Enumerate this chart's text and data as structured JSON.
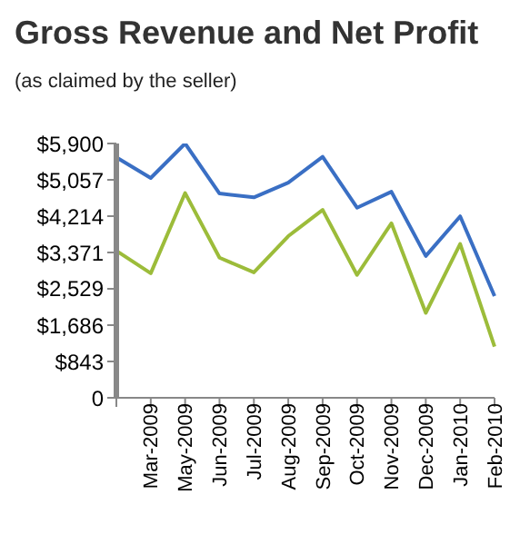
{
  "chart_data": {
    "type": "line",
    "title": "Gross Revenue and Net Profit",
    "subtitle": "(as claimed by the seller)",
    "categories": [
      null,
      "Mar-2009",
      "May-2009",
      "Jun-2009",
      "Jul-2009",
      "Aug-2009",
      "Sep-2009",
      "Oct-2009",
      "Nov-2009",
      "Dec-2009",
      "Jan-2010",
      "Feb-2010"
    ],
    "series": [
      {
        "color": "#3a6fc4",
        "values": [
          5580,
          5100,
          5900,
          4740,
          4650,
          4990,
          5590,
          4410,
          4780,
          3290,
          4210,
          2360
        ]
      },
      {
        "color": "#9cbc3a",
        "values": [
          3410,
          2890,
          4750,
          3250,
          2910,
          3750,
          4360,
          2850,
          4050,
          1970,
          3570,
          1190
        ]
      }
    ],
    "ylim": [
      0,
      5900
    ],
    "yticks": [
      0,
      {
        "value": 843,
        "label": "$843"
      },
      {
        "value": 1686,
        "label": "$1,686"
      },
      {
        "value": 2529,
        "label": "$2,529"
      },
      {
        "value": 3371,
        "label": "$3,371"
      },
      {
        "value": 4214,
        "label": "$4,214"
      },
      {
        "value": 5057,
        "label": "$5,057"
      },
      {
        "value": 5900,
        "label": "$5,900"
      }
    ],
    "grid": false,
    "legend": false,
    "marker": "none",
    "line_style": "solid"
  }
}
